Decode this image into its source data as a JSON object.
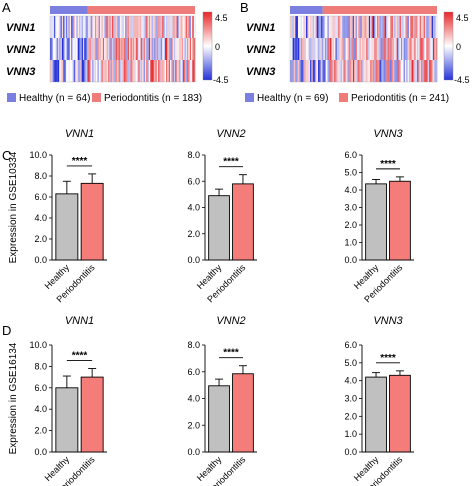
{
  "colors": {
    "healthy": "#7b7fe0",
    "periodontitis": "#ee7d79",
    "bar_healthy": "#c0c0c0",
    "bar_perio": "#f47d7a",
    "heat_high": "#e8262a",
    "heat_low": "#2432d8"
  },
  "heatmaps": [
    {
      "panel": "A",
      "genes": [
        "VNN1",
        "VNN2",
        "VNN3"
      ],
      "legend": {
        "healthy": "Healthy (n = 64)",
        "periodontitis": "Periodontitis (n = 183)"
      },
      "n_healthy": 64,
      "n_perio": 183,
      "scale": {
        "max": "4.5",
        "mid": "0",
        "min": "-4.5"
      }
    },
    {
      "panel": "B",
      "genes": [
        "VNN1",
        "VNN2",
        "VNN3"
      ],
      "legend": {
        "healthy": "Healthy (n = 69)",
        "periodontitis": "Periodontitis (n = 241)"
      },
      "n_healthy": 69,
      "n_perio": 241,
      "scale": {
        "max": "4.5",
        "mid": "0",
        "min": "-4.5"
      }
    }
  ],
  "chart_data": [
    {
      "type": "bar",
      "panel": "C",
      "title": "VNN1",
      "ylabel": "Expression in GSE10334",
      "categories": [
        "Healthy",
        "Periodontitis"
      ],
      "values": [
        6.3,
        7.3
      ],
      "errors": [
        1.2,
        0.9
      ],
      "ylim": [
        0,
        10
      ],
      "yticks": [
        "0.0",
        "2.0",
        "4.0",
        "6.0",
        "8.0",
        "10.0"
      ],
      "significance": "****"
    },
    {
      "type": "bar",
      "panel": "C",
      "title": "VNN2",
      "ylabel": "",
      "categories": [
        "Healthy",
        "Periodontitis"
      ],
      "values": [
        4.9,
        5.8
      ],
      "errors": [
        0.5,
        0.7
      ],
      "ylim": [
        0,
        8
      ],
      "yticks": [
        "0.0",
        "2.0",
        "4.0",
        "6.0",
        "8.0"
      ],
      "significance": "****"
    },
    {
      "type": "bar",
      "panel": "C",
      "title": "VNN3",
      "ylabel": "",
      "categories": [
        "Healthy",
        "Periodontitis"
      ],
      "values": [
        4.35,
        4.5
      ],
      "errors": [
        0.25,
        0.25
      ],
      "ylim": [
        0,
        6
      ],
      "yticks": [
        "0.0",
        "1.0",
        "2.0",
        "3.0",
        "4.0",
        "5.0",
        "6.0"
      ],
      "significance": "****"
    },
    {
      "type": "bar",
      "panel": "D",
      "title": "VNN1",
      "ylabel": "Expression in GSE16134",
      "categories": [
        "Healthy",
        "Periodontitis"
      ],
      "values": [
        6.0,
        7.0
      ],
      "errors": [
        1.1,
        0.8
      ],
      "ylim": [
        0,
        10
      ],
      "yticks": [
        "0.0",
        "2.0",
        "4.0",
        "6.0",
        "8.0",
        "10.0"
      ],
      "significance": "****"
    },
    {
      "type": "bar",
      "panel": "D",
      "title": "VNN2",
      "ylabel": "",
      "categories": [
        "Healthy",
        "Periodontitis"
      ],
      "values": [
        4.95,
        5.85
      ],
      "errors": [
        0.5,
        0.6
      ],
      "ylim": [
        0,
        8
      ],
      "yticks": [
        "0.0",
        "2.0",
        "4.0",
        "6.0",
        "8.0"
      ],
      "significance": "****"
    },
    {
      "type": "bar",
      "panel": "D",
      "title": "VNN3",
      "ylabel": "",
      "categories": [
        "Healthy",
        "Periodontitis"
      ],
      "values": [
        4.2,
        4.3
      ],
      "errors": [
        0.25,
        0.25
      ],
      "ylim": [
        0,
        6
      ],
      "yticks": [
        "0.0",
        "1.0",
        "2.0",
        "3.0",
        "4.0",
        "5.0",
        "6.0"
      ],
      "significance": "****"
    }
  ],
  "panel_labels": [
    "A",
    "B",
    "C",
    "D"
  ]
}
